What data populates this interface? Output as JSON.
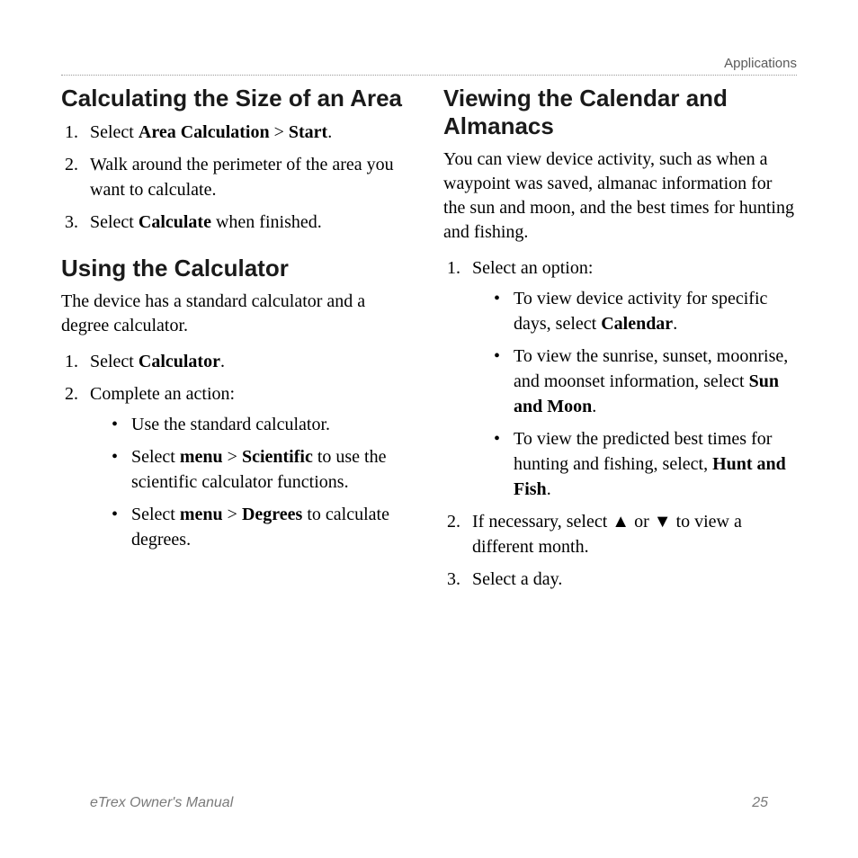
{
  "header": {
    "section": "Applications"
  },
  "left": {
    "h1": "Calculating the Size of an Area",
    "steps1": {
      "s1_a": "Select ",
      "s1_b": "Area Calculation",
      "s1_c": " > ",
      "s1_d": "Start",
      "s1_e": ".",
      "s2": "Walk around the perimeter of the area you want to calculate.",
      "s3_a": "Select ",
      "s3_b": "Calculate",
      "s3_c": " when finished."
    },
    "h2": "Using the Calculator",
    "intro2": "The device has a standard calculator and a degree calculator.",
    "steps2": {
      "s1_a": "Select ",
      "s1_b": "Calculator",
      "s1_c": ".",
      "s2": "Complete an action:",
      "bullets": {
        "b1": "Use the standard calculator.",
        "b2_a": "Select ",
        "b2_b": "menu",
        "b2_c": " > ",
        "b2_d": "Scientific",
        "b2_e": " to use the scientific calculator functions.",
        "b3_a": "Select ",
        "b3_b": "menu",
        "b3_c": " > ",
        "b3_d": "Degrees",
        "b3_e": " to calculate degrees."
      }
    }
  },
  "right": {
    "h1": "Viewing the Calendar and Almanacs",
    "intro": "You can view device activity, such as when a waypoint was saved, almanac information for the sun and moon, and the best times for hunting and fishing.",
    "steps": {
      "s1": "Select an option:",
      "bullets": {
        "b1_a": "To view device activity for specific days, select ",
        "b1_b": "Calendar",
        "b1_c": ".",
        "b2_a": "To view the sunrise, sunset, moonrise, and moonset information, select ",
        "b2_b": "Sun and Moon",
        "b2_c": ".",
        "b3_a": "To view the predicted best times for hunting and fishing, select, ",
        "b3_b": "Hunt and Fish",
        "b3_c": "."
      },
      "s2_a": "If necessary, select ",
      "s2_up": "▲",
      "s2_b": " or ",
      "s2_down": "▼",
      "s2_c": " to view a different month.",
      "s3": "Select a day."
    }
  },
  "footer": {
    "title": "eTrex Owner's Manual",
    "page": "25"
  }
}
